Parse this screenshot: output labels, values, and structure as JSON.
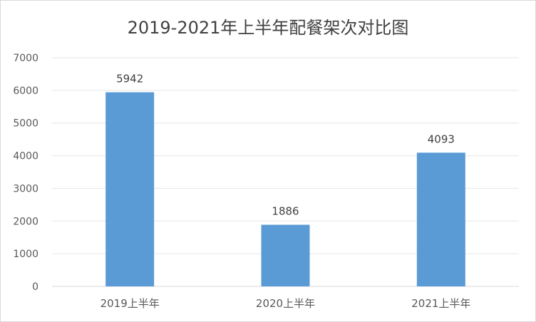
{
  "chart_data": {
    "type": "bar",
    "title": "2019-2021年上半年配餐架次对比图",
    "categories": [
      "2019上半年",
      "2020上半年",
      "2021上半年"
    ],
    "values": [
      5942,
      1886,
      4093
    ],
    "data_labels": [
      "5942",
      "1886",
      "4093"
    ],
    "ylim": [
      0,
      7000
    ],
    "yticks": [
      "0",
      "1000",
      "2000",
      "3000",
      "4000",
      "5000",
      "6000",
      "7000"
    ],
    "xlabel": "",
    "ylabel": "",
    "grid": true,
    "bar_color": "#5b9bd5"
  }
}
